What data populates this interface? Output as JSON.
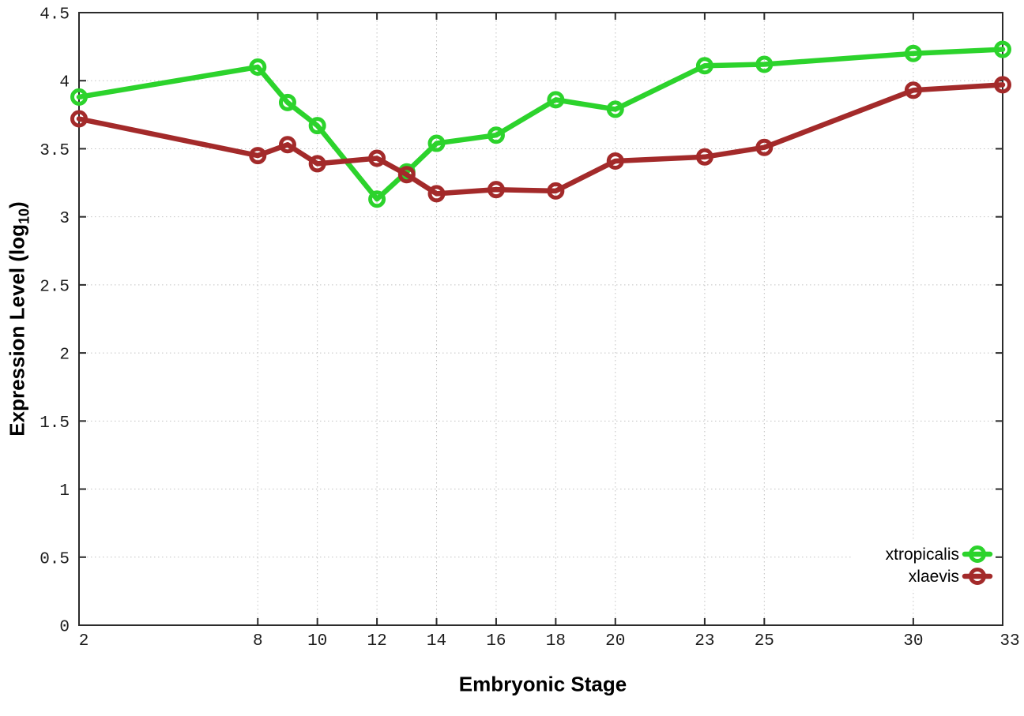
{
  "chart_data": {
    "type": "line",
    "title": "",
    "xlabel": "Embryonic Stage",
    "ylabel": "Expression Level (log10)",
    "ylabel_parts": {
      "main": "Expression Level (log",
      "sub": "10",
      "close": ")"
    },
    "x": [
      2,
      8,
      9,
      10,
      12,
      13,
      14,
      16,
      18,
      20,
      23,
      25,
      30,
      33
    ],
    "series": [
      {
        "name": "xtropicalis",
        "color": "#2cd32c",
        "values": [
          3.88,
          4.1,
          3.84,
          3.67,
          3.13,
          3.33,
          3.54,
          3.6,
          3.86,
          3.79,
          4.11,
          4.12,
          4.2,
          4.23
        ]
      },
      {
        "name": "xlaevis",
        "color": "#a32a2a",
        "values": [
          3.72,
          3.45,
          3.53,
          3.39,
          3.43,
          3.31,
          3.17,
          3.2,
          3.19,
          3.41,
          3.44,
          3.51,
          3.93,
          3.97
        ]
      }
    ],
    "xticks": [
      2,
      8,
      10,
      12,
      14,
      16,
      18,
      20,
      23,
      25,
      30,
      33
    ],
    "xtick_labels": [
      "2",
      "8",
      "10",
      "12",
      "14",
      "16",
      "18",
      "20",
      "23",
      "25",
      "30",
      "33"
    ],
    "yticks": [
      0,
      0.5,
      1,
      1.5,
      2,
      2.5,
      3,
      3.5,
      4,
      4.5
    ],
    "ytick_labels": [
      "0",
      "0.5",
      "1",
      "1.5",
      "2",
      "2.5",
      "3",
      "3.5",
      "4",
      "4.5"
    ],
    "xlim": [
      2,
      33
    ],
    "ylim": [
      0,
      4.5
    ],
    "grid": true,
    "legend_position": "bottom-right",
    "legend_entries": [
      "xtropicalis",
      "xlaevis"
    ],
    "colors": {
      "xtropicalis": "#2cd32c",
      "xlaevis": "#a32a2a",
      "grid": "#c2c2c2",
      "axis": "#2b2b2b",
      "tick_text": "#1c1c1c",
      "background": "#ffffff"
    }
  }
}
